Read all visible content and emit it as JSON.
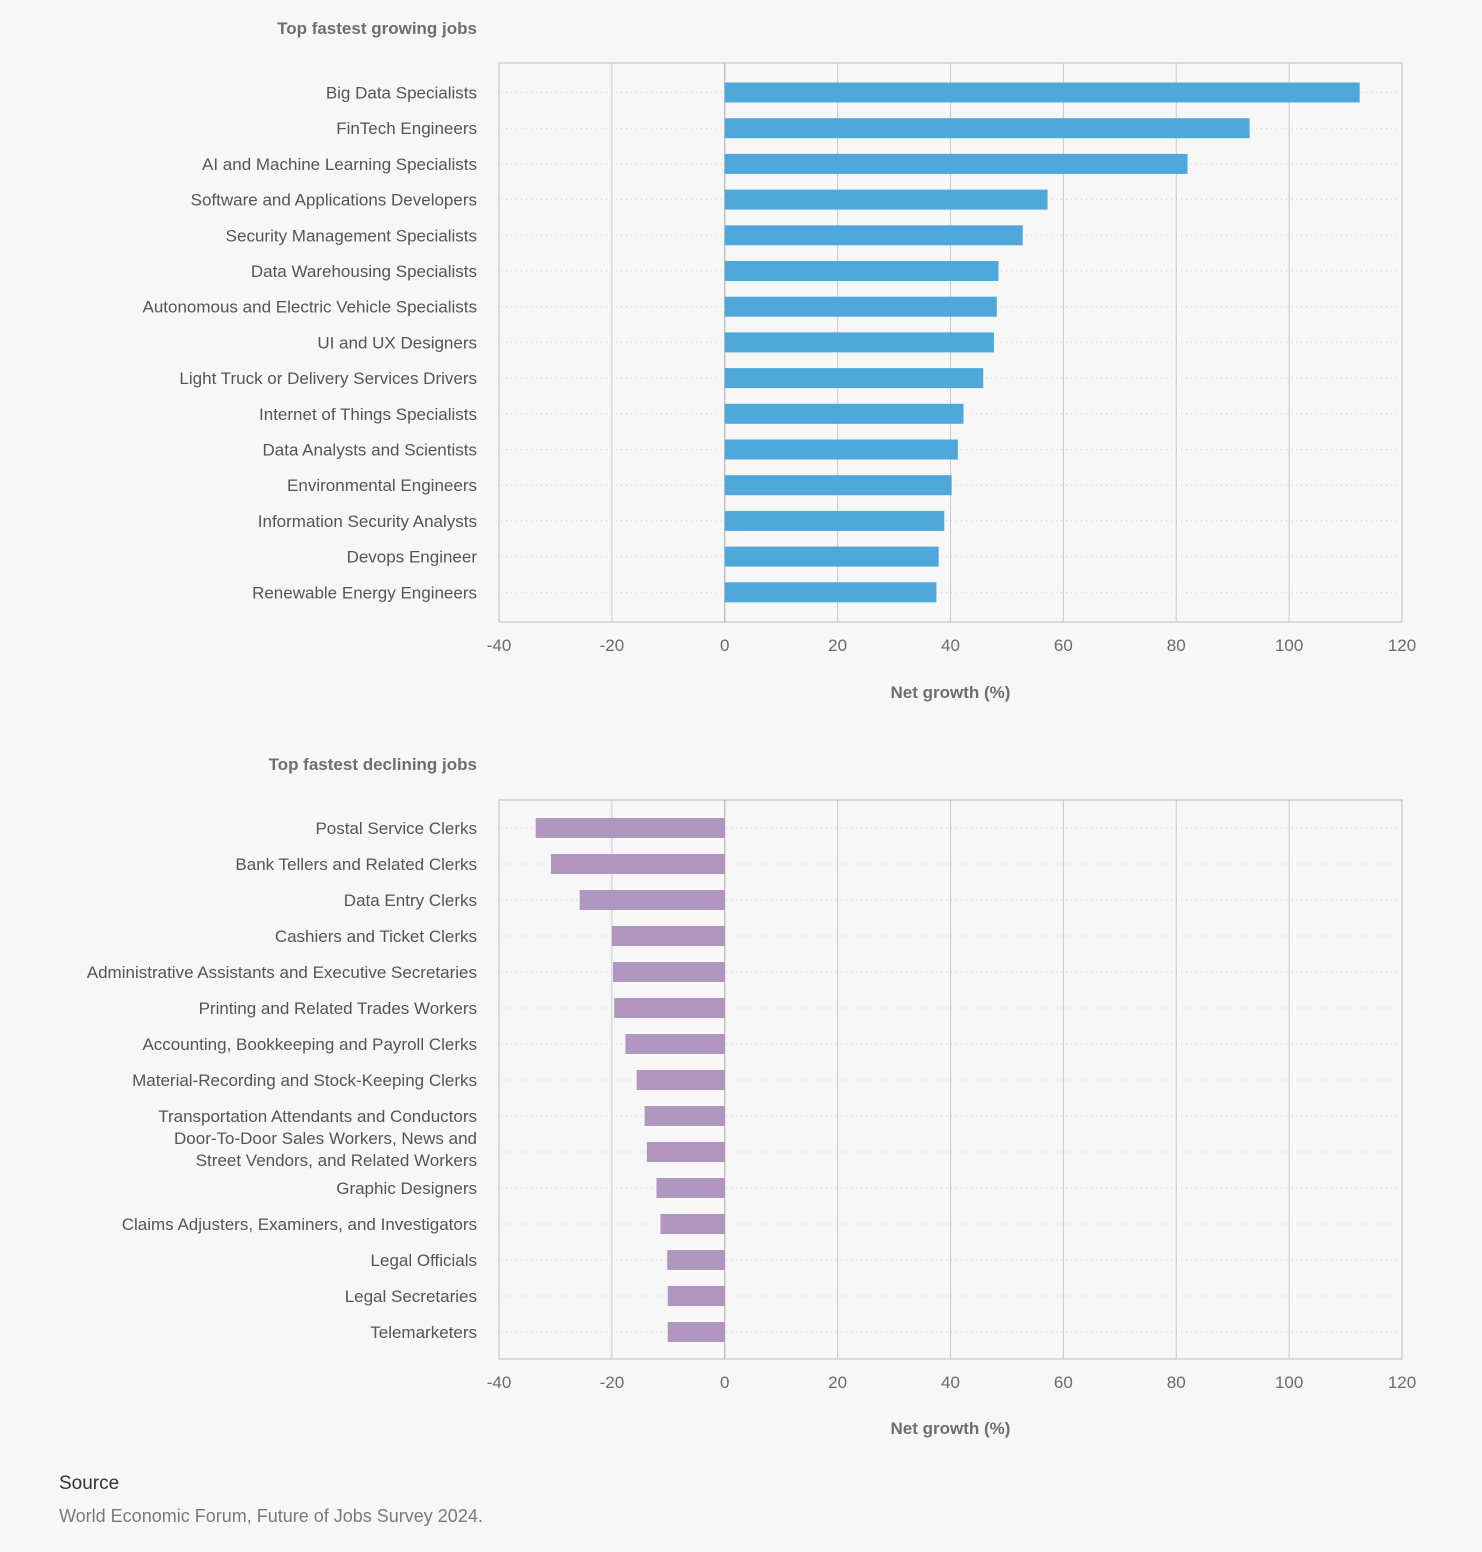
{
  "chart_data": [
    {
      "type": "bar",
      "orientation": "horizontal",
      "title": "Top fastest growing jobs",
      "xlabel": "Net growth (%)",
      "xlim": [
        -40,
        120
      ],
      "xticks": [
        -40,
        -20,
        0,
        20,
        40,
        60,
        80,
        100,
        120
      ],
      "grid": true,
      "bar_color": "#4ea8dc",
      "categories": [
        "Big Data Specialists",
        "FinTech Engineers",
        "AI and Machine Learning Specialists",
        "Software and Applications Developers",
        "Security Management Specialists",
        "Data Warehousing Specialists",
        "Autonomous and Electric Vehicle Specialists",
        "UI and UX Designers",
        "Light Truck or Delivery Services Drivers",
        "Internet of Things Specialists",
        "Data Analysts and Scientists",
        "Environmental Engineers",
        "Information Security Analysts",
        "Devops Engineer",
        "Renewable Energy Engineers"
      ],
      "values": [
        112.5,
        93,
        82,
        57.2,
        52.8,
        48.5,
        48.2,
        47.7,
        45.8,
        42.3,
        41.3,
        40.2,
        38.9,
        37.9,
        37.5
      ]
    },
    {
      "type": "bar",
      "orientation": "horizontal",
      "title": "Top fastest declining jobs",
      "xlabel": "Net growth (%)",
      "xlim": [
        -40,
        120
      ],
      "xticks": [
        -40,
        -20,
        0,
        20,
        40,
        60,
        80,
        100,
        120
      ],
      "grid": true,
      "bar_color": "#b197c0",
      "categories": [
        "Postal Service Clerks",
        "Bank Tellers and Related Clerks",
        "Data Entry Clerks",
        "Cashiers and Ticket Clerks",
        "Administrative Assistants and Executive Secretaries",
        "Printing and Related Trades Workers",
        "Accounting, Bookkeeping and Payroll Clerks",
        "Material-Recording and Stock-Keeping Clerks",
        "Transportation Attendants and Conductors",
        "Door-To-Door Sales Workers, News and Street Vendors, and Related Workers",
        "Graphic Designers",
        "Claims Adjusters, Examiners, and Investigators",
        "Legal Officials",
        "Legal Secretaries",
        "Telemarketers"
      ],
      "values": [
        -33.5,
        -30.8,
        -25.7,
        -20,
        -19.8,
        -19.6,
        -17.6,
        -15.6,
        -14.2,
        -13.8,
        -12.1,
        -11.4,
        -10.2,
        -10.1,
        -10.1
      ]
    }
  ],
  "source": {
    "heading": "Source",
    "text": "World Economic Forum, Future of Jobs Survey 2024."
  }
}
